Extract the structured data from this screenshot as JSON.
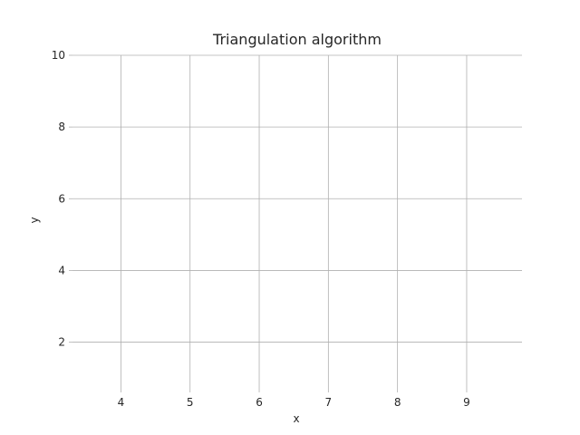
{
  "chart_data": {
    "type": "scatter",
    "title": "Triangulation algorithm",
    "xlabel": "x",
    "ylabel": "y",
    "xlim": [
      3.3,
      9.8
    ],
    "ylim": [
      0.7,
      10.0
    ],
    "xticks": [
      4,
      5,
      6,
      7,
      8,
      9
    ],
    "yticks": [
      2,
      4,
      6,
      8,
      10
    ],
    "grid": true,
    "series": [],
    "colors": {
      "grid": "#b0b0b0",
      "text": "#262626",
      "background": "#ffffff"
    }
  }
}
